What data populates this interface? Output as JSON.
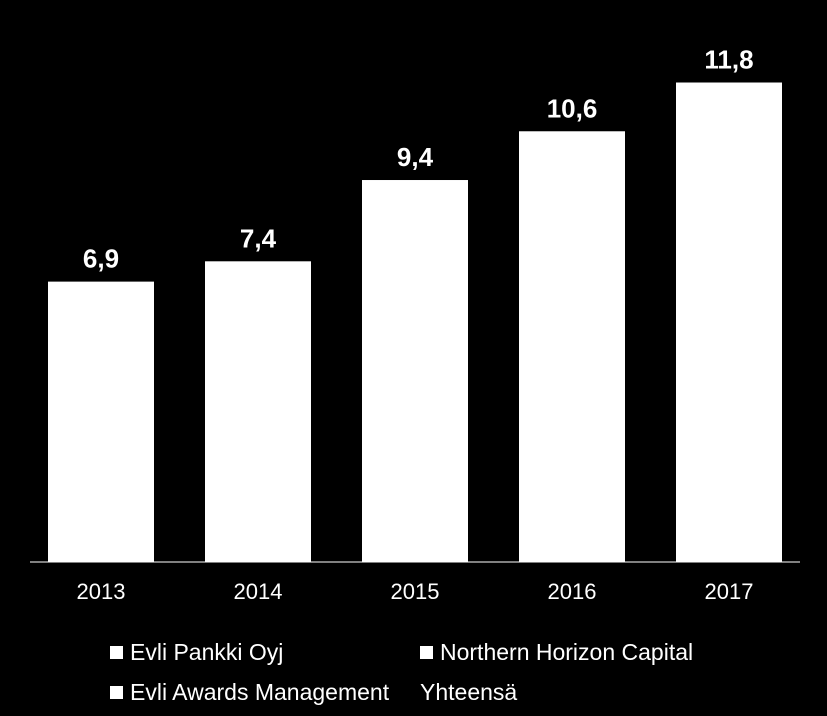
{
  "chart_data": {
    "type": "bar",
    "categories": [
      "2013",
      "2014",
      "2015",
      "2016",
      "2017"
    ],
    "series": [
      {
        "name": "Yhteensä",
        "values": [
          6.9,
          7.4,
          9.4,
          10.6,
          11.8
        ]
      }
    ],
    "data_labels": [
      "6,9",
      "7,4",
      "9,4",
      "10,6",
      "11,8"
    ],
    "legend": [
      {
        "label": "Evli Pankki Oyj",
        "swatch": true
      },
      {
        "label": "Northern Horizon Capital",
        "swatch": true
      },
      {
        "label": "Evli Awards Management",
        "swatch": true
      },
      {
        "label": "Yhteensä",
        "swatch": false
      }
    ],
    "legend_position": "bottom",
    "ylim": [
      0,
      12.6
    ],
    "grid": false,
    "title": "",
    "xlabel": "",
    "ylabel": ""
  },
  "colors": {
    "background": "#000000",
    "bar": "#ffffff",
    "text": "#ffffff",
    "axis": "#ffffff"
  }
}
